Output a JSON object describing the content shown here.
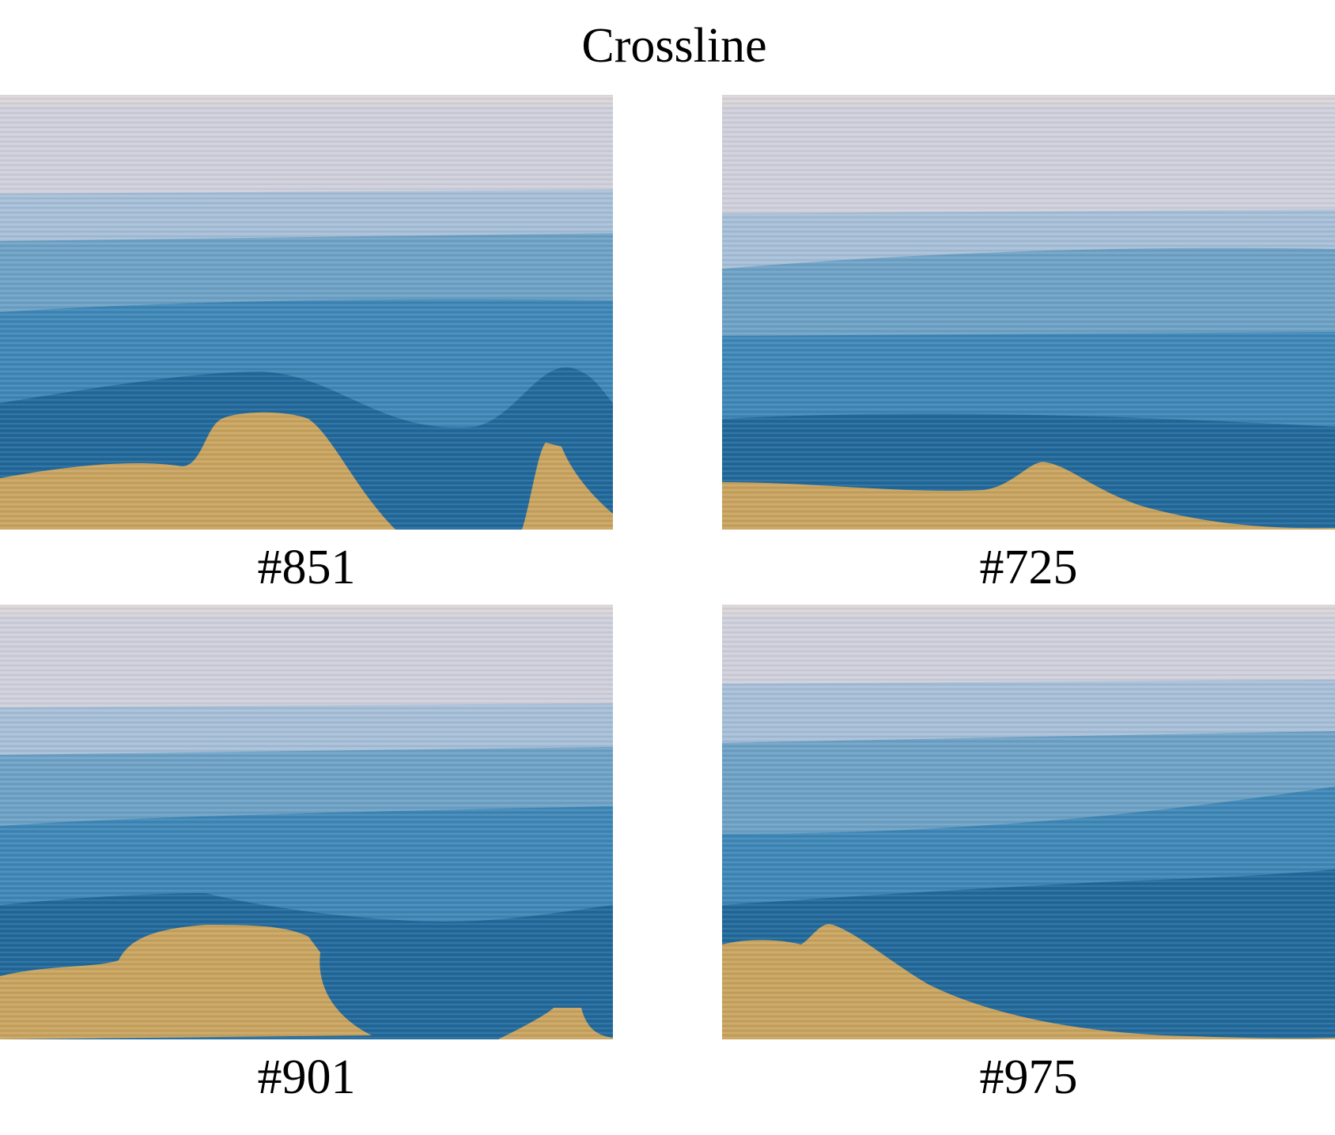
{
  "title": "Crossline",
  "panels": [
    {
      "label": "#851"
    },
    {
      "label": "#725"
    },
    {
      "label": "#901"
    },
    {
      "label": "#975"
    }
  ],
  "colors": {
    "top_layer": "#cfd0dc",
    "layer_2": "#a7bfd8",
    "layer_3": "#6ea2c6",
    "layer_4": "#3f88b8",
    "layer_5": "#21699b",
    "basement": "#c9a460",
    "noise_band": "#d9d5d8"
  }
}
